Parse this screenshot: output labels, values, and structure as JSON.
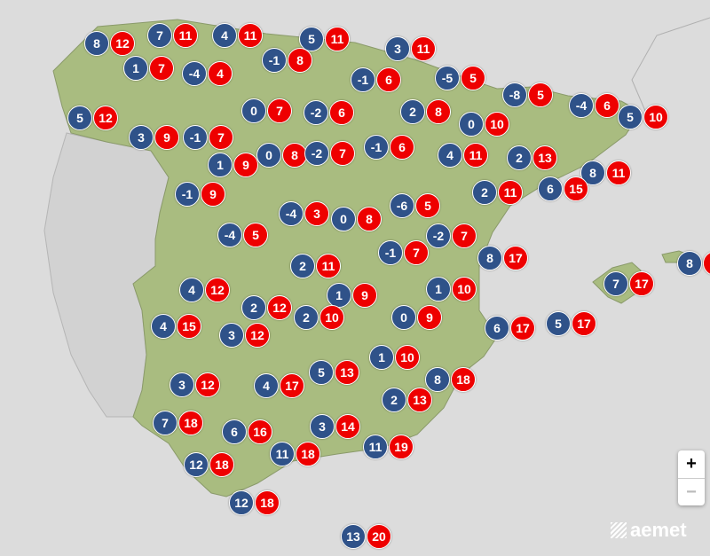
{
  "colors": {
    "min": "#2f5289",
    "max": "#ee0000",
    "land": "#a9bc80",
    "sea": "#dcdcdc"
  },
  "stations": [
    {
      "min": "8",
      "max": "12"
    },
    {
      "min": "7",
      "max": "11"
    },
    {
      "min": "4",
      "max": "11"
    },
    {
      "min": "5",
      "max": "11"
    },
    {
      "min": "3",
      "max": "11"
    },
    {
      "min": "1",
      "max": "7"
    },
    {
      "min": "-4",
      "max": "4"
    },
    {
      "min": "-1",
      "max": "8"
    },
    {
      "min": "-1",
      "max": "6"
    },
    {
      "min": "-5",
      "max": "5"
    },
    {
      "min": "-8",
      "max": "5"
    },
    {
      "min": "-4",
      "max": "6"
    },
    {
      "min": "5",
      "max": "10"
    },
    {
      "min": "5",
      "max": "12"
    },
    {
      "min": "3",
      "max": "9"
    },
    {
      "min": "-1",
      "max": "7"
    },
    {
      "min": "0",
      "max": "7"
    },
    {
      "min": "-2",
      "max": "6"
    },
    {
      "min": "2",
      "max": "8"
    },
    {
      "min": "0",
      "max": "10"
    },
    {
      "min": "1",
      "max": "9"
    },
    {
      "min": "0",
      "max": "8"
    },
    {
      "min": "-2",
      "max": "7"
    },
    {
      "min": "-1",
      "max": "6"
    },
    {
      "min": "4",
      "max": "11"
    },
    {
      "min": "2",
      "max": "13"
    },
    {
      "min": "8",
      "max": "11"
    },
    {
      "min": "-1",
      "max": "9"
    },
    {
      "min": "2",
      "max": "11"
    },
    {
      "min": "6",
      "max": "15"
    },
    {
      "min": "-4",
      "max": "3"
    },
    {
      "min": "0",
      "max": "8"
    },
    {
      "min": "-6",
      "max": "5"
    },
    {
      "min": "-4",
      "max": "5"
    },
    {
      "min": "-2",
      "max": "7"
    },
    {
      "min": "-1",
      "max": "7"
    },
    {
      "min": "8",
      "max": "17"
    },
    {
      "min": "8",
      "max": ""
    },
    {
      "min": "2",
      "max": "11"
    },
    {
      "min": "4",
      "max": "12"
    },
    {
      "min": "7",
      "max": "17"
    },
    {
      "min": "1",
      "max": "9"
    },
    {
      "min": "1",
      "max": "10"
    },
    {
      "min": "2",
      "max": "12"
    },
    {
      "min": "2",
      "max": "10"
    },
    {
      "min": "4",
      "max": "15"
    },
    {
      "min": "3",
      "max": "12"
    },
    {
      "min": "0",
      "max": "9"
    },
    {
      "min": "6",
      "max": "17"
    },
    {
      "min": "5",
      "max": "17"
    },
    {
      "min": "1",
      "max": "10"
    },
    {
      "min": "3",
      "max": "12"
    },
    {
      "min": "4",
      "max": "17"
    },
    {
      "min": "5",
      "max": "13"
    },
    {
      "min": "8",
      "max": "18"
    },
    {
      "min": "2",
      "max": "13"
    },
    {
      "min": "7",
      "max": "18"
    },
    {
      "min": "6",
      "max": "16"
    },
    {
      "min": "3",
      "max": "14"
    },
    {
      "min": "11",
      "max": "18"
    },
    {
      "min": "11",
      "max": "19"
    },
    {
      "min": "12",
      "max": "18"
    },
    {
      "min": "12",
      "max": "18"
    },
    {
      "min": "13",
      "max": "20"
    }
  ],
  "zoom_controls": {
    "zoom_in": "+",
    "zoom_out": "−"
  },
  "logo": "aemet"
}
